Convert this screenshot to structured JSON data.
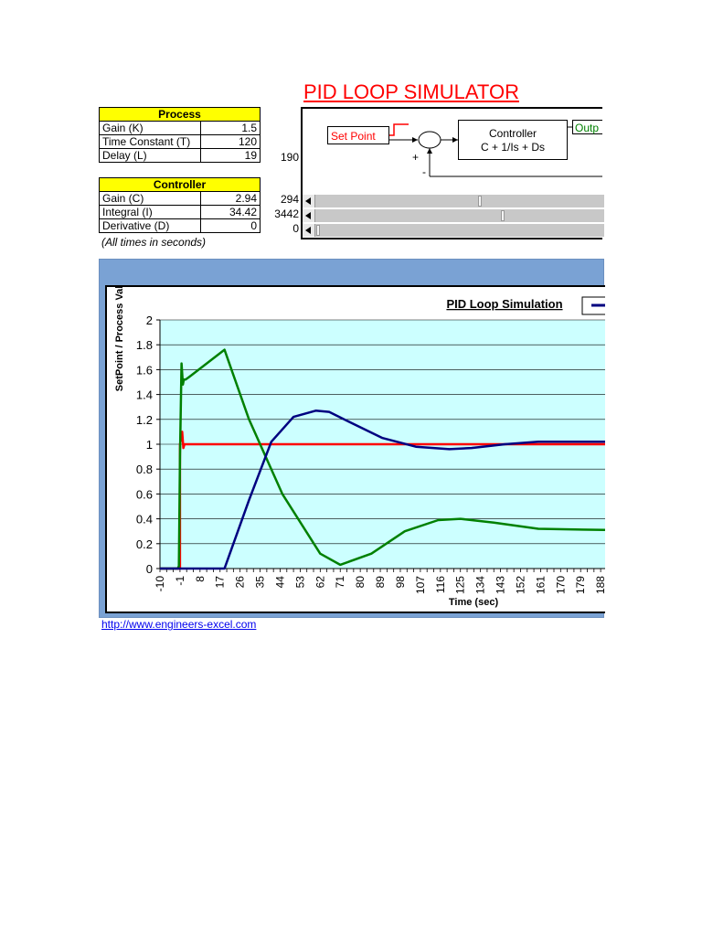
{
  "title": "PID LOOP SIMULATOR",
  "process": {
    "header": "Process",
    "rows": [
      {
        "label": "Gain (K)",
        "value": "1.5"
      },
      {
        "label": "Time Constant (T)",
        "value": "120"
      },
      {
        "label": "Delay (L)",
        "value": "19"
      }
    ],
    "side_values": [
      "190"
    ]
  },
  "controller": {
    "header": "Controller",
    "rows": [
      {
        "label": "Gain (C)",
        "value": "2.94"
      },
      {
        "label": "Integral (I)",
        "value": "34.42"
      },
      {
        "label": "Derivative (D)",
        "value": "0"
      }
    ],
    "side_values": [
      "294",
      "3442",
      "0"
    ],
    "slider_levels": [
      0.57,
      0.65,
      0.0
    ]
  },
  "note": "(All times in seconds)",
  "diagram": {
    "set_point": "Set Point",
    "controller_label": "Controller",
    "controller_formula": "C + 1/Is + Ds",
    "output_label": "Outp",
    "plus": "+",
    "minus": "-"
  },
  "link": "http://www.engineers-excel.com",
  "chart_data": {
    "type": "line",
    "title": "PID Loop Simulation",
    "xlabel": "Time (sec)",
    "ylabel": "SetPoint / Process Value",
    "ylim": [
      0,
      2
    ],
    "xlim": [
      -10,
      190
    ],
    "yticks": [
      "0",
      "0.2",
      "0.4",
      "0.6",
      "0.8",
      "1",
      "1.2",
      "1.4",
      "1.6",
      "1.8",
      "2"
    ],
    "xticks": [
      "-10",
      "-1",
      "8",
      "17",
      "26",
      "35",
      "44",
      "53",
      "62",
      "71",
      "80",
      "89",
      "98",
      "107",
      "116",
      "125",
      "134",
      "143",
      "152",
      "161",
      "170",
      "179",
      "188"
    ],
    "grid": true,
    "plot_background": "#ccffff",
    "series": [
      {
        "color": "#ff0000",
        "x": [
          -10,
          -1,
          -1,
          0,
          0.5,
          1,
          2,
          190
        ],
        "y": [
          0,
          0,
          1,
          1.1,
          0.97,
          1.0,
          1.0,
          1.0
        ]
      },
      {
        "color": "#008000",
        "x": [
          -10,
          -2,
          -1.5,
          -1,
          -0.3,
          0.3,
          0.7,
          1.5,
          3,
          19,
          30,
          45,
          62,
          71,
          85,
          100,
          115,
          125,
          140,
          160,
          190
        ],
        "y": [
          0,
          0,
          0.02,
          0.9,
          1.65,
          1.48,
          1.52,
          1.52,
          1.54,
          1.76,
          1.2,
          0.6,
          0.12,
          0.03,
          0.12,
          0.3,
          0.39,
          0.4,
          0.37,
          0.32,
          0.31
        ]
      },
      {
        "color": "#000080",
        "x": [
          -10,
          19,
          30,
          40,
          50,
          60,
          66,
          75,
          90,
          105,
          120,
          130,
          145,
          160,
          175,
          190
        ],
        "y": [
          0,
          0,
          0.55,
          1.02,
          1.22,
          1.27,
          1.26,
          1.18,
          1.05,
          0.98,
          0.96,
          0.97,
          1.0,
          1.02,
          1.02,
          1.02
        ]
      }
    ]
  }
}
